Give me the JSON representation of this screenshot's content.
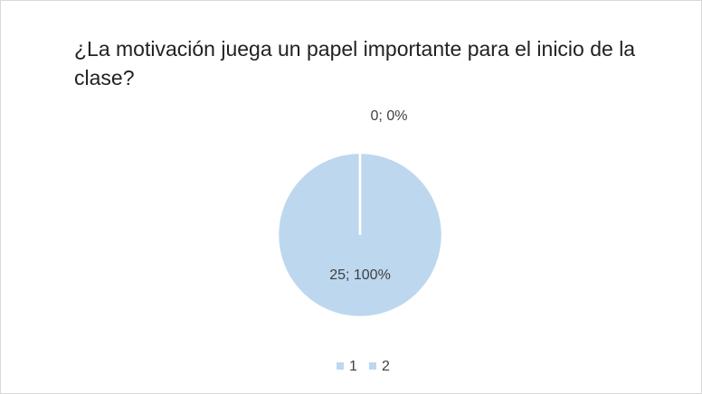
{
  "chart_data": {
    "type": "pie",
    "title": "¿La motivación juega un papel importante para el inicio de la clase?",
    "categories": [
      "1",
      "2"
    ],
    "values": [
      25,
      0
    ],
    "value_labels": [
      "25; 100%",
      "0; 0%"
    ],
    "colors": [
      "#bdd7ee",
      "#bdd7ee"
    ],
    "legend": "bottom"
  }
}
